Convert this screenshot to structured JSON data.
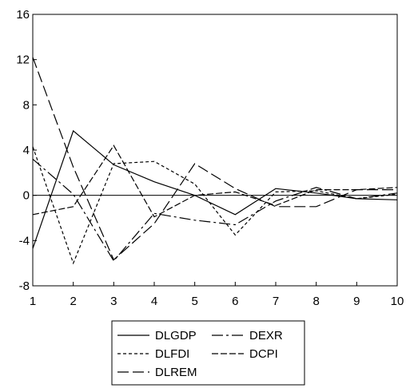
{
  "chart_data": {
    "type": "line",
    "title": "",
    "xlabel": "",
    "ylabel": "",
    "x": [
      1,
      2,
      3,
      4,
      5,
      6,
      7,
      8,
      9,
      10
    ],
    "xlim": [
      1,
      10
    ],
    "ylim": [
      -8,
      16
    ],
    "x_ticks": [
      "1",
      "2",
      "3",
      "4",
      "5",
      "6",
      "7",
      "8",
      "9",
      "10"
    ],
    "y_ticks": [
      "-8",
      "-4",
      "0",
      "4",
      "8",
      "12",
      "16"
    ],
    "zero_line": true,
    "grid": false,
    "legend_position": "bottom",
    "series": [
      {
        "name": "DLGDP",
        "dash": "solid",
        "values": [
          -4.7,
          5.7,
          2.7,
          1.2,
          0.0,
          -1.7,
          0.6,
          0.2,
          -0.3,
          -0.4
        ]
      },
      {
        "name": "DEXR",
        "dash": "dashdot",
        "values": [
          3.2,
          0.1,
          -5.8,
          -1.6,
          -2.2,
          -2.6,
          -0.5,
          0.7,
          -0.3,
          0.2
        ]
      },
      {
        "name": "DLFDI",
        "dash": "shortdash",
        "values": [
          4.3,
          -6.0,
          2.8,
          3.0,
          1.0,
          -3.5,
          0.3,
          0.4,
          -0.3,
          0.1
        ]
      },
      {
        "name": "DCPI",
        "dash": "mediumdash",
        "values": [
          -1.7,
          -1.0,
          4.4,
          -1.9,
          0.0,
          0.3,
          -0.9,
          0.5,
          0.5,
          0.7
        ]
      },
      {
        "name": "DLREM",
        "dash": "longdash",
        "values": [
          12.2,
          2.5,
          -5.7,
          -2.5,
          2.8,
          0.6,
          -1.0,
          -1.0,
          0.5,
          0.5
        ]
      }
    ]
  }
}
